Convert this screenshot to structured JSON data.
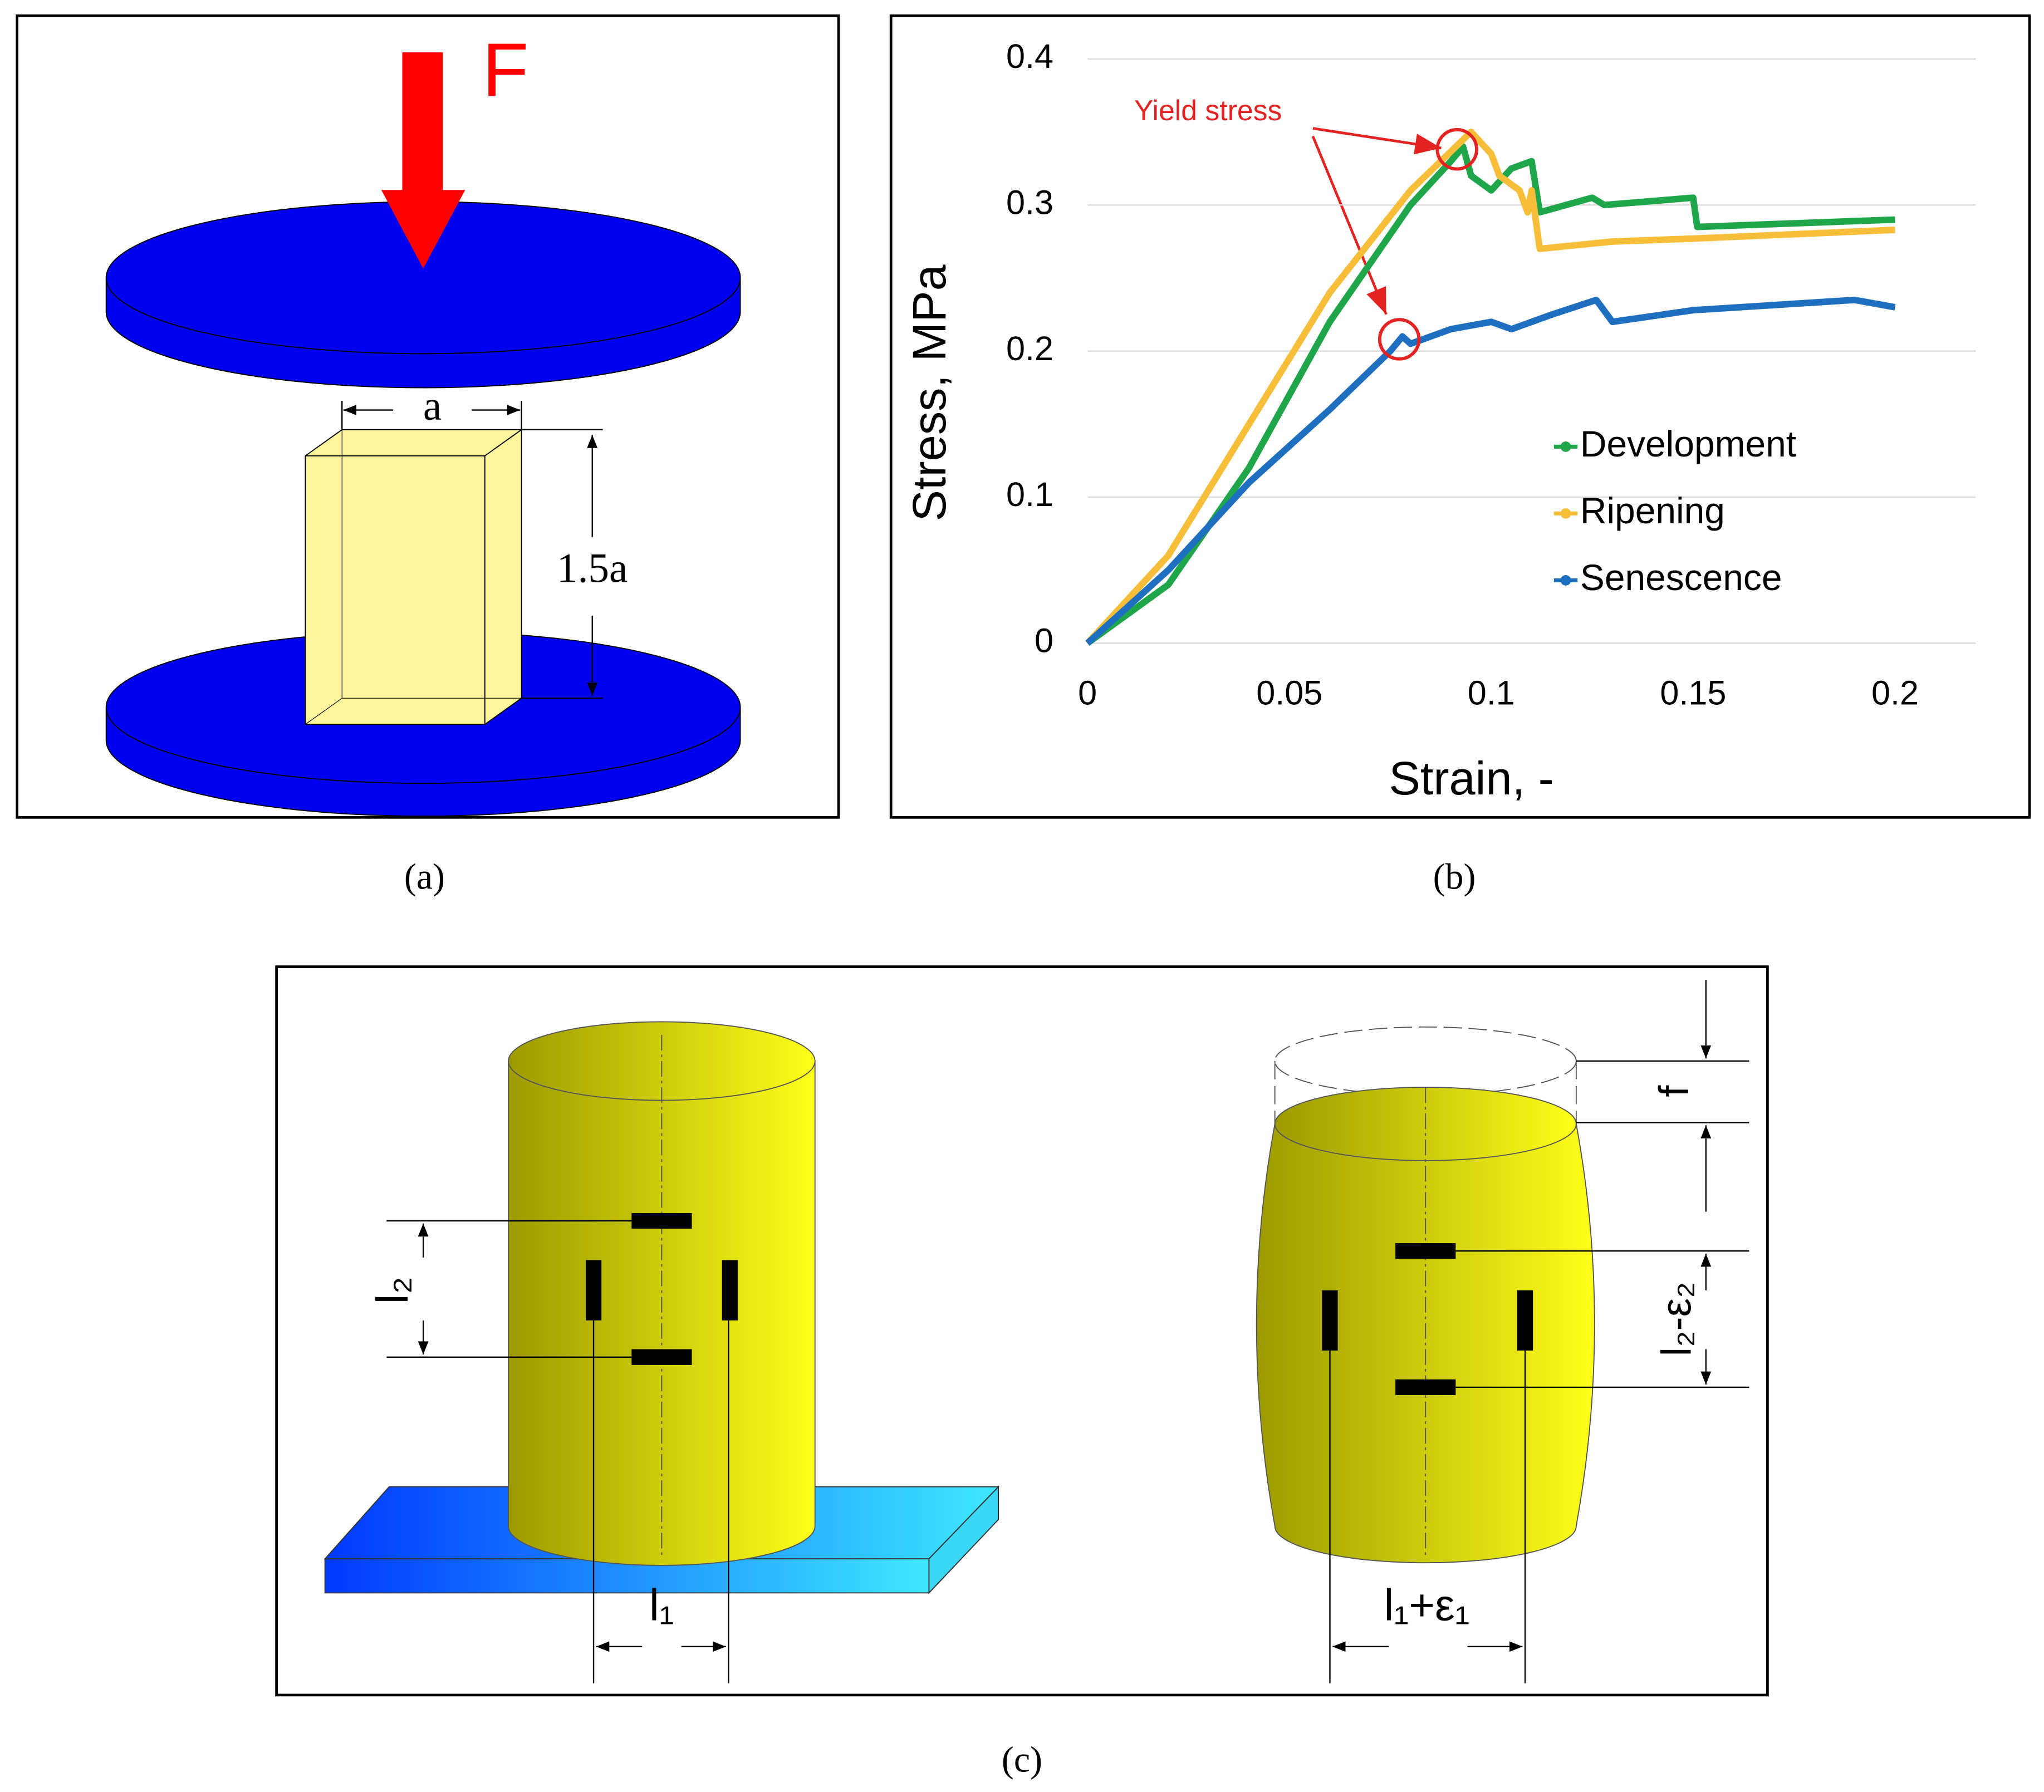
{
  "chart_data": {
    "type": "line",
    "annotation": "Yield stress",
    "x_label": "Strain, -",
    "y_label": "Stress, MPa",
    "xlim": [
      0,
      0.22
    ],
    "ylim": [
      0,
      0.4
    ],
    "xticks": [
      0,
      0.05,
      0.1,
      0.15,
      0.2
    ],
    "yticks": [
      0,
      0.1,
      0.2,
      0.3,
      0.4
    ],
    "grid": true,
    "legend": "right",
    "series": [
      {
        "name": "Development",
        "color": "#1fa64a",
        "x": [
          0,
          0.02,
          0.04,
          0.06,
          0.08,
          0.09,
          0.093,
          0.095,
          0.1,
          0.105,
          0.11,
          0.112,
          0.125,
          0.128,
          0.15,
          0.151,
          0.2
        ],
        "values": [
          0,
          0.04,
          0.12,
          0.22,
          0.3,
          0.33,
          0.34,
          0.32,
          0.31,
          0.325,
          0.33,
          0.295,
          0.305,
          0.3,
          0.305,
          0.285,
          0.29
        ]
      },
      {
        "name": "Ripening",
        "color": "#f7be3a",
        "x": [
          0,
          0.02,
          0.04,
          0.06,
          0.08,
          0.095,
          0.1,
          0.102,
          0.107,
          0.109,
          0.11,
          0.112,
          0.13,
          0.15,
          0.2
        ],
        "values": [
          0,
          0.06,
          0.15,
          0.24,
          0.31,
          0.35,
          0.335,
          0.32,
          0.31,
          0.295,
          0.31,
          0.27,
          0.275,
          0.277,
          0.283
        ]
      },
      {
        "name": "Senescence",
        "color": "#1f6fc0",
        "x": [
          0,
          0.02,
          0.04,
          0.06,
          0.075,
          0.078,
          0.08,
          0.09,
          0.1,
          0.105,
          0.115,
          0.126,
          0.13,
          0.15,
          0.19,
          0.2
        ],
        "values": [
          0,
          0.05,
          0.11,
          0.16,
          0.2,
          0.21,
          0.205,
          0.215,
          0.22,
          0.215,
          0.225,
          0.235,
          0.22,
          0.228,
          0.235,
          0.23
        ]
      }
    ]
  },
  "diagrams": {
    "a": {
      "force": "F",
      "width": "a",
      "height": "1.5a",
      "caption": "(a)"
    },
    "b": {
      "caption": "(b)"
    },
    "c": {
      "gauge_vertical": "l₂",
      "gauge_horizontal": "l₁",
      "compression": "f",
      "deformed_vertical": "l₂-ε₂",
      "deformed_horizontal": "l₁+ε₁",
      "caption": "(c)"
    }
  }
}
